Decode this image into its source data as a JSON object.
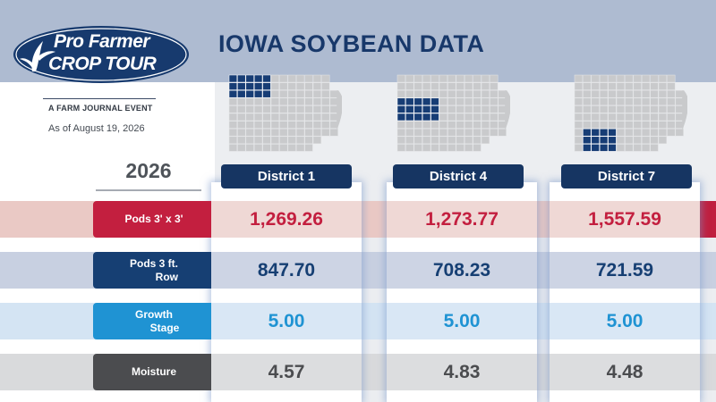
{
  "brand": {
    "logo_line1": "Pro Farmer",
    "logo_line2": "CROP TOUR",
    "tagline": "A FARM JOURNAL EVENT",
    "as_of": "As of August 19, 2026"
  },
  "title": "IOWA SOYBEAN DATA",
  "year": "2026",
  "colors": {
    "pods33": "#c31f3f",
    "pods_row": "#163f73",
    "growth": "#1f93d3",
    "moisture": "#4b4c4f",
    "district_highlight": "#173d75",
    "map_grey": "#c9cacc"
  },
  "metrics": [
    {
      "key": "pods33",
      "label": "Pods 3' x 3'"
    },
    {
      "key": "pods_row",
      "label_line1": "Pods 3 ft.",
      "label_line2": "Row"
    },
    {
      "key": "growth",
      "label_line1": "Growth",
      "label_line2": "Stage"
    },
    {
      "key": "moisture",
      "label": "Moisture"
    }
  ],
  "districts": [
    {
      "name": "District 1",
      "pods33": "1,269.26",
      "pods_row": "847.70",
      "growth": "5.00",
      "moisture": "4.57",
      "map_highlight": "northwest"
    },
    {
      "name": "District 4",
      "pods33": "1,273.77",
      "pods_row": "708.23",
      "growth": "5.00",
      "moisture": "4.83",
      "map_highlight": "west-central"
    },
    {
      "name": "District 7",
      "pods33": "1,557.59",
      "pods_row": "721.59",
      "growth": "5.00",
      "moisture": "4.48",
      "map_highlight": "southwest"
    }
  ]
}
